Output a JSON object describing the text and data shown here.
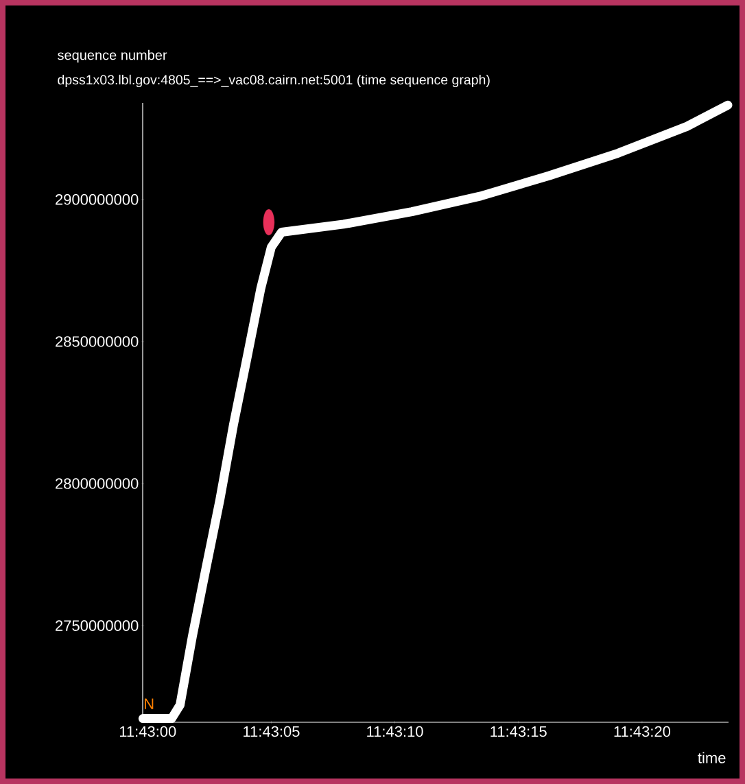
{
  "chart_data": {
    "type": "line",
    "title": "dpss1x03.lbl.gov:4805_==>_vac08.cairn.net:5001 (time sequence graph)",
    "xlabel": "time",
    "ylabel": "sequence number",
    "x": [
      11.716614,
      11.716936,
      11.717031,
      11.717169,
      11.717322,
      11.717478,
      11.717631,
      11.717786,
      11.717939,
      11.718056,
      11.718172,
      11.718867,
      11.719636,
      11.720408,
      11.721181,
      11.721953,
      11.722725,
      11.723186
    ],
    "series": [
      {
        "color": "#ffffff",
        "values": [
          2717300000,
          2717300000,
          2722100000,
          2746200000,
          2770200000,
          2794200000,
          2820700000,
          2844700000,
          2868800000,
          2883200000,
          2888500000,
          2891300000,
          2895700000,
          2901200000,
          2908400000,
          2916300000,
          2925700000,
          2933200000
        ]
      },
      {
        "type": "scatter",
        "color": "#e8305a",
        "x": [
          11.718028
        ],
        "values": [
          2892000000
        ]
      }
    ],
    "annotations": [
      "N"
    ],
    "xlim": [
      11.716611,
      11.723194
    ],
    "ylim": [
      2716000000,
      2934000000
    ],
    "xticks": [
      {
        "value": 11.716667,
        "label": "11:43:00"
      },
      {
        "value": 11.718056,
        "label": "11:43:05"
      },
      {
        "value": 11.719444,
        "label": "11:43:10"
      },
      {
        "value": 11.720833,
        "label": "11:43:15"
      },
      {
        "value": 11.722222,
        "label": "11:43:20"
      }
    ],
    "yticks": [
      2750000000,
      2800000000,
      2850000000,
      2900000000
    ],
    "grid": false,
    "marker": "none",
    "line_style": "solid"
  }
}
